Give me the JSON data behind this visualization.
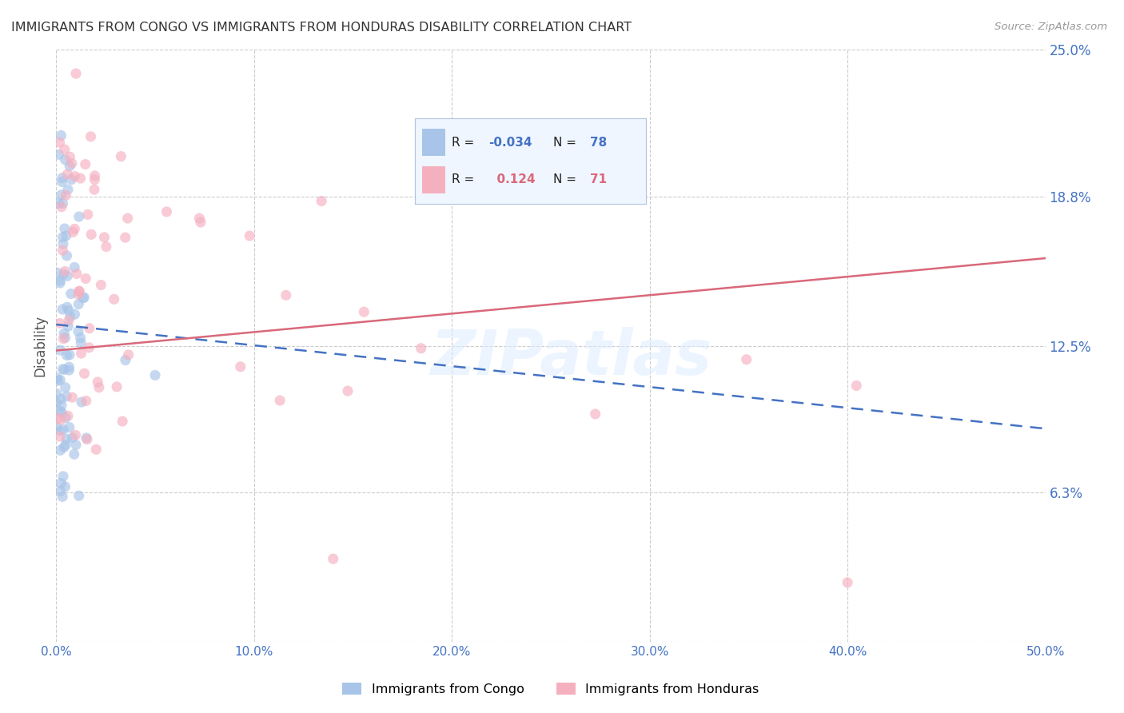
{
  "title": "IMMIGRANTS FROM CONGO VS IMMIGRANTS FROM HONDURAS DISABILITY CORRELATION CHART",
  "source": "Source: ZipAtlas.com",
  "ylabel": "Disability",
  "xlim": [
    0,
    0.5
  ],
  "ylim": [
    0,
    0.25
  ],
  "xticks": [
    0.0,
    0.1,
    0.2,
    0.3,
    0.4,
    0.5
  ],
  "xtick_labels": [
    "0.0%",
    "10.0%",
    "20.0%",
    "30.0%",
    "40.0%",
    "50.0%"
  ],
  "ytick_right_vals": [
    0.0,
    0.063,
    0.125,
    0.188,
    0.25
  ],
  "ytick_right_labels": [
    "",
    "6.3%",
    "12.5%",
    "18.8%",
    "25.0%"
  ],
  "congo_R": -0.034,
  "congo_N": 78,
  "honduras_R": 0.124,
  "honduras_N": 71,
  "congo_color": "#a8c4e8",
  "honduras_color": "#f5b0c0",
  "congo_line_color": "#4472c4",
  "honduras_line_color": "#d9687a",
  "background_color": "#ffffff",
  "grid_color": "#cccccc",
  "watermark": "ZIPatlas",
  "congo_line_start_y": 0.134,
  "congo_line_end_y": 0.09,
  "honduras_line_start_y": 0.123,
  "honduras_line_end_y": 0.162
}
